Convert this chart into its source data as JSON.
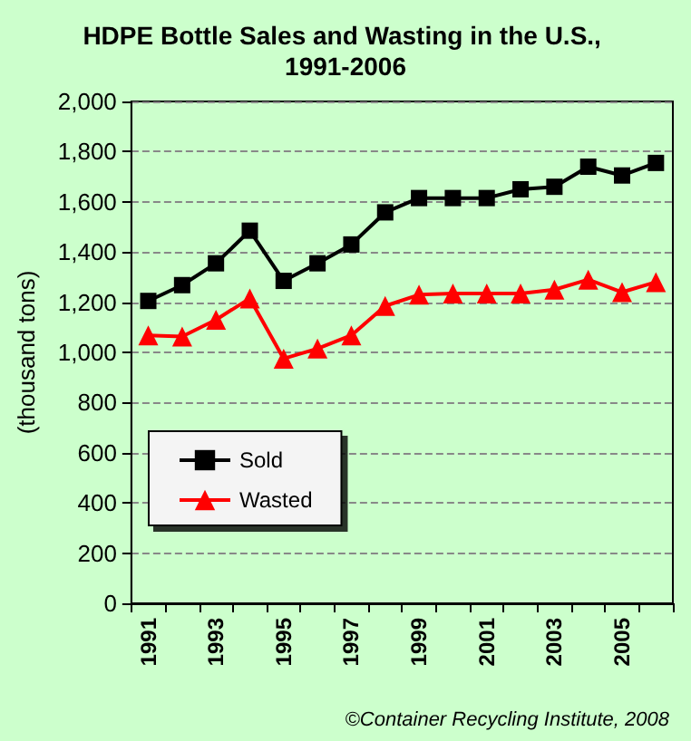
{
  "chart_data": {
    "type": "line",
    "title": "HDPE Bottle Sales and Wasting in the U.S., 1991-2006",
    "ylabel": "(thousand tons)",
    "categories": [
      "1991",
      null,
      "1993",
      null,
      "1995",
      null,
      "1997",
      null,
      "1999",
      null,
      "2001",
      null,
      "2003",
      null,
      "2005",
      null
    ],
    "series": [
      {
        "name": "Sold",
        "color": "#000000",
        "marker": "square",
        "values": [
          1205,
          1268,
          1355,
          1485,
          1285,
          1355,
          1430,
          1558,
          1615,
          1615,
          1615,
          1650,
          1660,
          1740,
          1705,
          1755
        ]
      },
      {
        "name": "Wasted",
        "color": "#ff0000",
        "marker": "triangle",
        "values": [
          1068,
          1063,
          1130,
          1215,
          975,
          1015,
          1068,
          1185,
          1230,
          1235,
          1235,
          1235,
          1250,
          1290,
          1240,
          1280
        ]
      }
    ],
    "ylim": [
      0,
      2000
    ],
    "yticks": [
      {
        "value": 0,
        "label": "0"
      },
      {
        "value": 200,
        "label": "200"
      },
      {
        "value": 400,
        "label": "400"
      },
      {
        "value": 600,
        "label": "600"
      },
      {
        "value": 800,
        "label": "800"
      },
      {
        "value": 1000,
        "label": "1,000"
      },
      {
        "value": 1200,
        "label": "1,200"
      },
      {
        "value": 1400,
        "label": "1,400"
      },
      {
        "value": 1600,
        "label": "1,600"
      },
      {
        "value": 1800,
        "label": "1,800"
      },
      {
        "value": 2000,
        "label": "2,000"
      }
    ],
    "grid": "y",
    "legend": "left",
    "line_style": "solid",
    "annotations": [
      "©Container Recycling Institute, 2008"
    ]
  }
}
